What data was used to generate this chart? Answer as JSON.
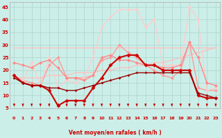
{
  "xlabel": "Vent moyen/en rafales ( km/h )",
  "xlim": [
    -0.5,
    23.5
  ],
  "ylim": [
    5,
    47
  ],
  "yticks": [
    5,
    10,
    15,
    20,
    25,
    30,
    35,
    40,
    45
  ],
  "xticks": [
    0,
    1,
    2,
    3,
    4,
    5,
    6,
    7,
    8,
    9,
    10,
    11,
    12,
    13,
    14,
    15,
    16,
    17,
    18,
    19,
    20,
    21,
    22,
    23
  ],
  "bg_color": "#cceee8",
  "grid_color": "#aad4cc",
  "series": [
    {
      "x": [
        0,
        1,
        2,
        3,
        4,
        5,
        6,
        7,
        8,
        9,
        10,
        11,
        12,
        13,
        14,
        15,
        16,
        17,
        18,
        19,
        20,
        21,
        22,
        23
      ],
      "y": [
        29,
        29,
        29,
        29,
        29,
        29,
        29,
        29,
        29,
        29,
        29,
        29,
        29,
        29,
        29,
        29,
        29,
        29,
        29,
        29,
        29,
        29,
        29,
        29
      ],
      "color": "#ffbbbb",
      "marker": "D",
      "markersize": 1.5,
      "linewidth": 0.8
    },
    {
      "x": [
        0,
        1,
        2,
        3,
        4,
        5,
        6,
        7,
        8,
        9,
        10,
        11,
        12,
        13,
        14,
        15,
        16,
        17,
        18,
        19,
        20,
        21,
        22,
        23
      ],
      "y": [
        17,
        17,
        17,
        17,
        18,
        18,
        18,
        19,
        19,
        19,
        20,
        20,
        21,
        21,
        22,
        22,
        23,
        23,
        24,
        25,
        26,
        27,
        28,
        29
      ],
      "color": "#ffbbbb",
      "marker": "D",
      "markersize": 1.5,
      "linewidth": 0.8
    },
    {
      "x": [
        0,
        1,
        2,
        3,
        4,
        5,
        6,
        7,
        8,
        9,
        10,
        11,
        12,
        13,
        14,
        15,
        16,
        17,
        18,
        19,
        20,
        21,
        22,
        23
      ],
      "y": [
        18,
        16,
        15,
        14,
        22,
        25,
        17,
        17,
        17,
        18,
        24,
        25,
        30,
        27,
        25,
        22,
        20,
        18,
        17,
        20,
        31,
        13,
        12,
        12
      ],
      "color": "#ff9999",
      "marker": "D",
      "markersize": 2.5,
      "linewidth": 1.0
    },
    {
      "x": [
        0,
        1,
        2,
        3,
        4,
        5,
        6,
        7,
        8,
        9,
        10,
        11,
        12,
        13,
        14,
        15,
        16,
        17,
        18,
        19,
        20,
        21,
        22,
        23
      ],
      "y": [
        18,
        16,
        23,
        14,
        25,
        13,
        16,
        15,
        17,
        25,
        37,
        41,
        44,
        44,
        44,
        37,
        40,
        22,
        22,
        22,
        45,
        40,
        12,
        13
      ],
      "color": "#ffcccc",
      "marker": "D",
      "markersize": 2.5,
      "linewidth": 0.9
    },
    {
      "x": [
        0,
        1,
        2,
        3,
        4,
        5,
        6,
        7,
        8,
        9,
        10,
        11,
        12,
        13,
        14,
        15,
        16,
        17,
        18,
        19,
        20,
        21,
        22,
        23
      ],
      "y": [
        23,
        22,
        21,
        23,
        24,
        21,
        17,
        17,
        16,
        18,
        25,
        26,
        24,
        24,
        23,
        22,
        22,
        21,
        21,
        22,
        31,
        25,
        15,
        14
      ],
      "color": "#ff8888",
      "marker": "D",
      "markersize": 2.5,
      "linewidth": 1.0
    },
    {
      "x": [
        0,
        1,
        2,
        3,
        4,
        5,
        6,
        7,
        8,
        9,
        10,
        11,
        12,
        13,
        14,
        15,
        16,
        17,
        18,
        19,
        20,
        21,
        22,
        23
      ],
      "y": [
        18,
        15,
        14,
        14,
        12,
        6,
        8,
        8,
        8,
        13,
        17,
        22,
        25,
        26,
        26,
        22,
        22,
        20,
        20,
        20,
        20,
        10,
        9,
        9
      ],
      "color": "#cc0000",
      "marker": "D",
      "markersize": 3,
      "linewidth": 1.5
    },
    {
      "x": [
        0,
        1,
        2,
        3,
        4,
        5,
        6,
        7,
        8,
        9,
        10,
        11,
        12,
        13,
        14,
        15,
        16,
        17,
        18,
        19,
        20,
        21,
        22,
        23
      ],
      "y": [
        17,
        15,
        14,
        14,
        13,
        13,
        12,
        12,
        13,
        14,
        15,
        16,
        17,
        18,
        19,
        19,
        19,
        19,
        19,
        19,
        19,
        11,
        10,
        9
      ],
      "color": "#990000",
      "marker": "D",
      "markersize": 2,
      "linewidth": 1.0
    }
  ],
  "arrow_color": "#cc0000"
}
